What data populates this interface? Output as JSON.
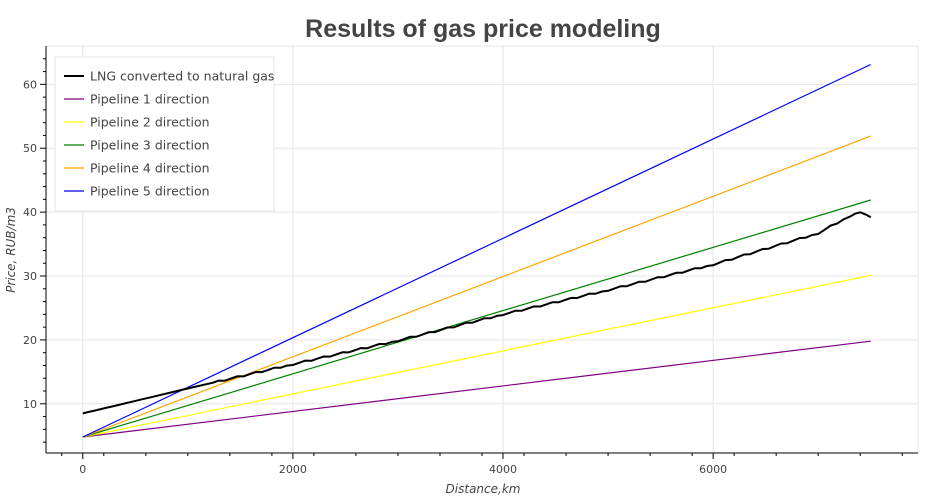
{
  "chart_data": {
    "type": "line",
    "title": "Results of gas price modeling",
    "xlabel": "Distance,km",
    "ylabel": "Price, RUB/m3",
    "xlim": [
      -350,
      7950
    ],
    "ylim": [
      2.3,
      66
    ],
    "x_ticks": [
      0,
      2000,
      4000,
      6000
    ],
    "x_tick_labels": [
      "0",
      "2000",
      "4000",
      "6000"
    ],
    "y_ticks": [
      10,
      20,
      30,
      40,
      50,
      60
    ],
    "y_tick_labels": [
      "10",
      "20",
      "30",
      "40",
      "50",
      "60"
    ],
    "grid": true,
    "legend_position": "top-left",
    "series": [
      {
        "name": "LNG converted to natural gas",
        "color": "#000000",
        "width": 2,
        "x": [
          0,
          1000,
          2000,
          3000,
          4000,
          5000,
          6000,
          7000,
          7300,
          7400,
          7500
        ],
        "y": [
          8.5,
          12.4,
          16.2,
          19.9,
          24.0,
          27.8,
          31.8,
          36.7,
          39.4,
          40.1,
          39.2
        ]
      },
      {
        "name": "Pipeline 1 direction",
        "color": "#800080",
        "width": 1.2,
        "x": [
          0,
          7500
        ],
        "y": [
          4.8,
          19.8
        ]
      },
      {
        "name": "Pipeline 2 direction",
        "color": "#ffff00",
        "width": 1.2,
        "x": [
          0,
          7500
        ],
        "y": [
          4.8,
          30.1
        ]
      },
      {
        "name": "Pipeline 3 direction",
        "color": "#008000",
        "width": 1.2,
        "x": [
          0,
          7500
        ],
        "y": [
          4.8,
          41.9
        ]
      },
      {
        "name": "Pipeline 4 direction",
        "color": "#ffa500",
        "width": 1.2,
        "x": [
          0,
          7500
        ],
        "y": [
          4.8,
          51.9
        ]
      },
      {
        "name": "Pipeline 5 direction",
        "color": "#0000ff",
        "width": 1.2,
        "x": [
          0,
          7500
        ],
        "y": [
          4.8,
          63.1
        ]
      }
    ]
  }
}
